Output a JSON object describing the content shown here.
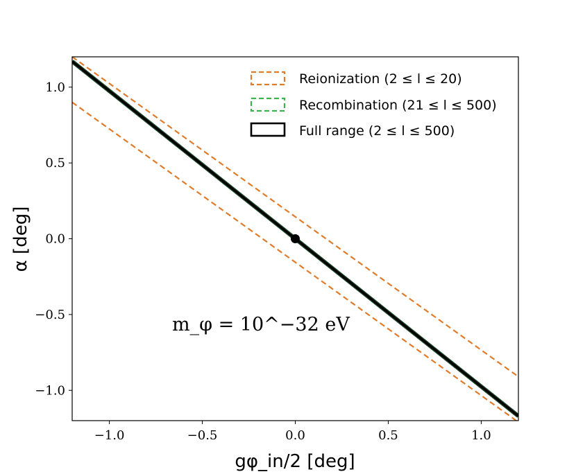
{
  "chart_data": {
    "type": "line",
    "title": "",
    "xlabel": "gφ_in/2 [deg]",
    "ylabel": "α [deg]",
    "xlim": [
      -1.2,
      1.2
    ],
    "ylim": [
      -1.2,
      1.2
    ],
    "xticks": [
      -1.0,
      -0.5,
      0.0,
      0.5,
      1.0
    ],
    "yticks": [
      -1.0,
      -0.5,
      0.0,
      0.5,
      1.0
    ],
    "xtick_labels": [
      "−1.0",
      "−0.5",
      "0.0",
      "0.5",
      "1.0"
    ],
    "ytick_labels": [
      "−1.0",
      "−0.5",
      "0.0",
      "0.5",
      "1.0"
    ],
    "legend_position": "top-right",
    "annotation": "m_φ = 10^−32 eV",
    "series": [
      {
        "name": "Reionization (2 ≤ l ≤ 20)",
        "style": "dashed",
        "color": "#e07b2a",
        "bands": [
          {
            "x": [
              -1.2,
              1.2
            ],
            "y": [
              1.2,
              -0.91
            ]
          },
          {
            "x": [
              -1.2,
              1.2
            ],
            "y": [
              0.9,
              -1.21
            ]
          }
        ]
      },
      {
        "name": "Recombination (21 ≤ l ≤ 500)",
        "style": "dashed",
        "color": "#3cb44b",
        "bands": []
      },
      {
        "name": "Full range (2 ≤ l ≤ 500)",
        "style": "solid",
        "color": "#000000",
        "line": {
          "x": [
            -1.2,
            1.2
          ],
          "y": [
            1.17,
            -1.17
          ]
        }
      }
    ],
    "point": {
      "x": 0.0,
      "y": 0.0,
      "color": "#000000"
    }
  }
}
